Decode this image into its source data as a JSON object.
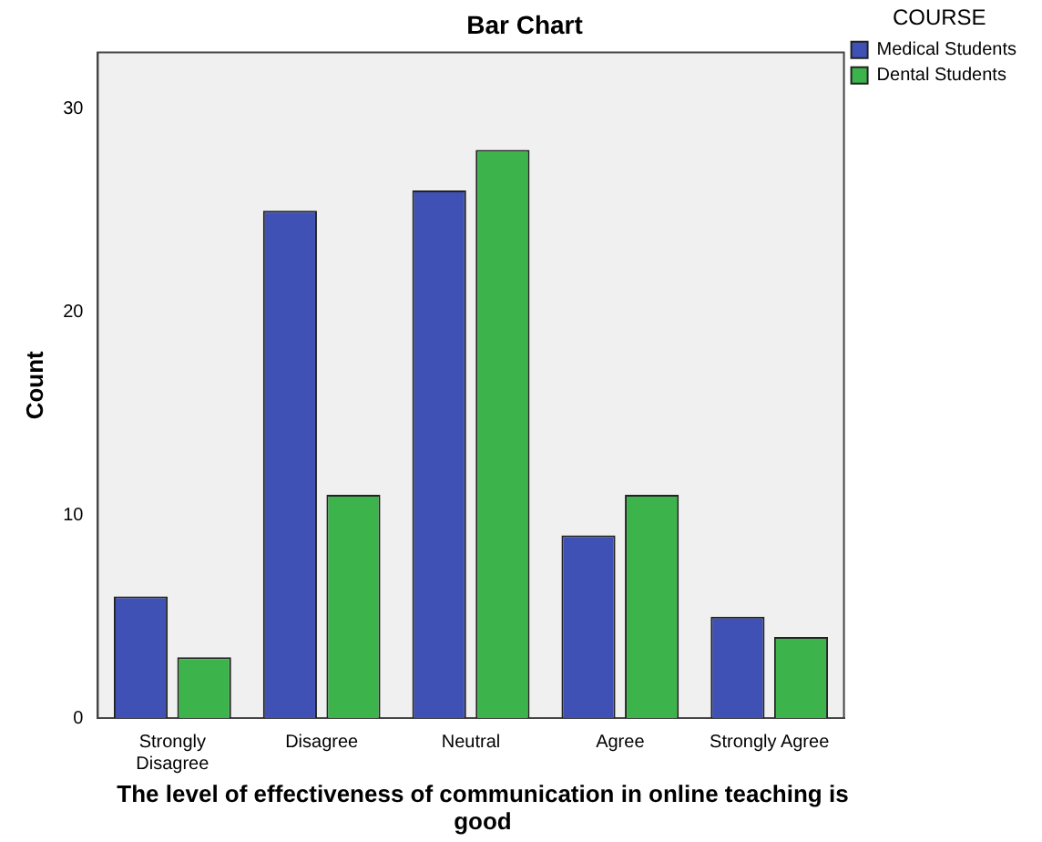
{
  "chart_data": {
    "type": "bar",
    "title": "Bar Chart",
    "xlabel": "The level of effectiveness of communication in online teaching is good",
    "ylabel": "Count",
    "legend_title": "COURSE",
    "categories": [
      "Strongly Disagree",
      "Disagree",
      "Neutral",
      "Agree",
      "Strongly Agree"
    ],
    "series": [
      {
        "name": "Medical Students",
        "color": "#3f51b5",
        "values": [
          6,
          25,
          26,
          9,
          5
        ]
      },
      {
        "name": "Dental Students",
        "color": "#3cb44b",
        "values": [
          3,
          11,
          28,
          11,
          4
        ]
      }
    ],
    "ylim": [
      0,
      32.8
    ],
    "yticks": [
      0,
      10,
      20,
      30
    ],
    "grid": false,
    "legend": "top right"
  }
}
